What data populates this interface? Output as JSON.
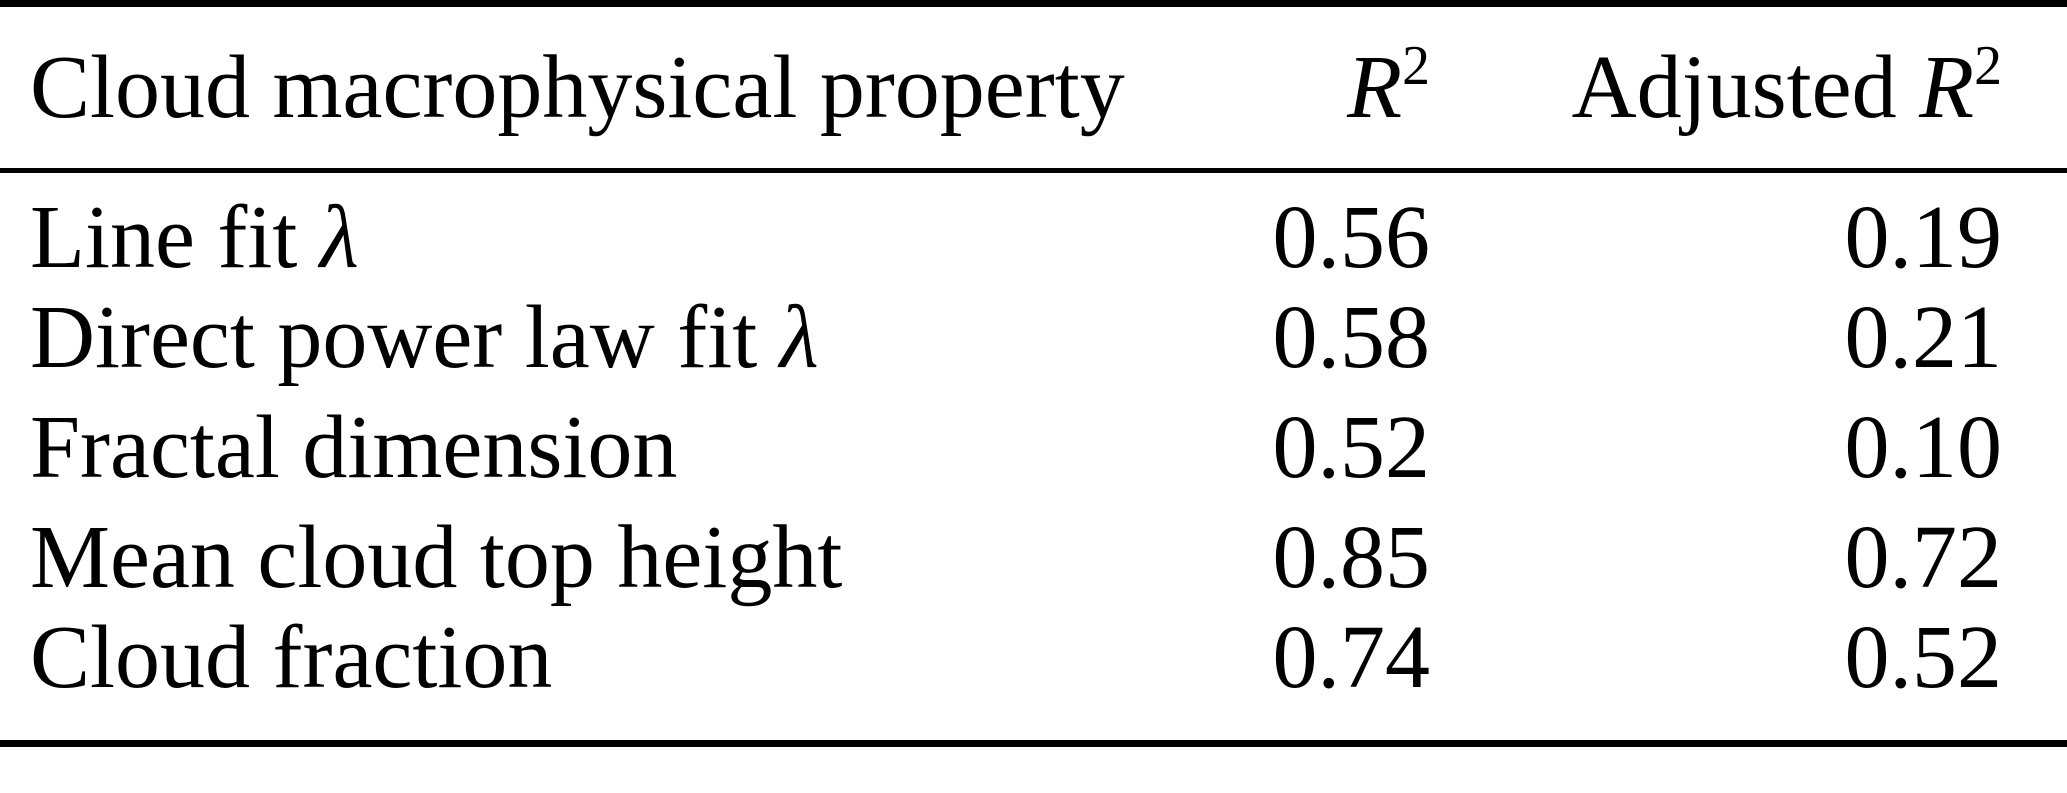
{
  "table": {
    "header": {
      "property": "Cloud macrophysical property",
      "r2": {
        "symbol": "R",
        "sup": "2"
      },
      "adj_r2": {
        "prefix": "Adjusted ",
        "symbol": "R",
        "sup": "2"
      }
    },
    "rows": [
      {
        "property": "Line fit ",
        "property_math": "λ",
        "r2": "0.56",
        "adj_r2": "0.19"
      },
      {
        "property": "Direct power law fit ",
        "property_math": "λ",
        "r2": "0.58",
        "adj_r2": "0.21"
      },
      {
        "property": "Fractal dimension",
        "property_math": "",
        "r2": "0.52",
        "adj_r2": "0.10"
      },
      {
        "property": "Mean cloud top height",
        "property_math": "",
        "r2": "0.85",
        "adj_r2": "0.72"
      },
      {
        "property": "Cloud fraction",
        "property_math": "",
        "r2": "0.74",
        "adj_r2": "0.52"
      }
    ]
  },
  "colors": {
    "text": "#000000",
    "background": "#ffffff",
    "rule": "#000000"
  },
  "chart_data": {
    "type": "table",
    "title": "",
    "columns": [
      "Cloud macrophysical property",
      "R^2",
      "Adjusted R^2"
    ],
    "rows": [
      [
        "Line fit λ",
        0.56,
        0.19
      ],
      [
        "Direct power law fit λ",
        0.58,
        0.21
      ],
      [
        "Fractal dimension",
        0.52,
        0.1
      ],
      [
        "Mean cloud top height",
        0.85,
        0.72
      ],
      [
        "Cloud fraction",
        0.74,
        0.52
      ]
    ]
  }
}
